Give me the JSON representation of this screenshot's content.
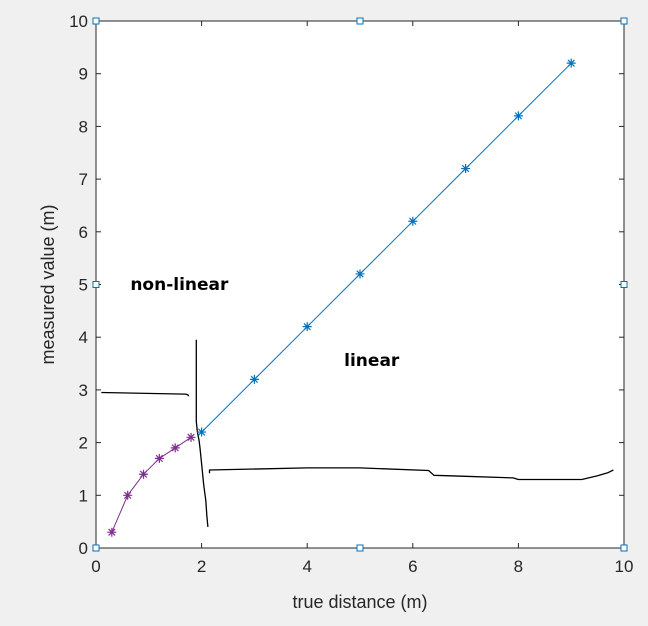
{
  "chart_data": {
    "type": "line",
    "title": "",
    "xlabel": "true distance (m)",
    "ylabel": "measured value (m)",
    "xlim": [
      0,
      10
    ],
    "ylim": [
      0,
      10
    ],
    "xticks": [
      0,
      2,
      4,
      6,
      8,
      10
    ],
    "yticks": [
      0,
      1,
      2,
      3,
      4,
      5,
      6,
      7,
      8,
      9,
      10
    ],
    "grid": false,
    "legend": "none",
    "series": [
      {
        "color": "#7e2f8e",
        "marker": "asterisk",
        "x": [
          0.3,
          0.6,
          0.9,
          1.2,
          1.5,
          1.8
        ],
        "y": [
          0.3,
          1.0,
          1.4,
          1.7,
          1.9,
          2.1
        ]
      },
      {
        "color": "#0072bd",
        "marker": "asterisk",
        "x": [
          2,
          3,
          4,
          5,
          6,
          7,
          8,
          9
        ],
        "y": [
          2.2,
          3.2,
          4.2,
          5.2,
          6.2,
          7.2,
          8.2,
          9.2
        ]
      }
    ],
    "annotations": [
      {
        "text": "non-linear",
        "x": 0.65,
        "y": 4.9
      },
      {
        "text": "linear",
        "x": 4.7,
        "y": 3.45
      }
    ],
    "hand_drawn_separators": [
      {
        "x": [
          0.1,
          1.7,
          1.75,
          1.75
        ],
        "y": [
          2.95,
          2.92,
          2.9,
          2.88
        ]
      },
      {
        "x": [
          1.9,
          1.9,
          1.92,
          1.95,
          1.97,
          2.0,
          2.04,
          2.08,
          2.1,
          2.12
        ],
        "y": [
          3.95,
          2.4,
          2.2,
          2.05,
          1.9,
          1.6,
          1.2,
          0.9,
          0.6,
          0.4
        ]
      },
      {
        "x": [
          2.15,
          2.15,
          4.0,
          5.0,
          6.3,
          6.4,
          7.0,
          7.9,
          8.0,
          9.2,
          9.5,
          9.7,
          9.8
        ],
        "y": [
          1.42,
          1.48,
          1.52,
          1.52,
          1.47,
          1.38,
          1.36,
          1.33,
          1.3,
          1.3,
          1.37,
          1.43,
          1.48
        ]
      }
    ],
    "colors": {
      "background": "#f0f0f0",
      "plot_area": "#ffffff",
      "axes": "#262626",
      "handles": "#0072bd",
      "separator": "#000000"
    }
  }
}
